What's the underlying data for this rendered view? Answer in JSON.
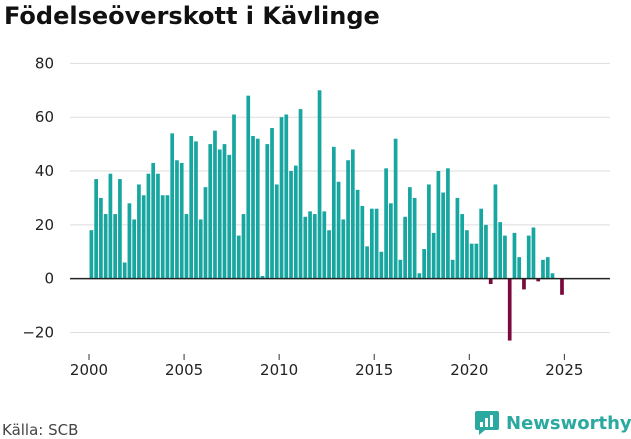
{
  "title": "Födelseöverskott i Kävlinge",
  "source": "Källa: SCB",
  "brand": {
    "name": "Newsworthy",
    "icon": "newsworthy-logo-icon"
  },
  "colors": {
    "positive": "#17a6a0",
    "negative": "#7b0a3c",
    "grid": "#dddddd",
    "zero_line": "#222222"
  },
  "chart_data": {
    "type": "bar",
    "title": "Födelseöverskott i Kävlinge",
    "xlabel": "",
    "ylabel": "",
    "ylim": [
      -28,
      82
    ],
    "xlim": [
      1999.0,
      2027.4
    ],
    "yticks": [
      -20,
      0,
      20,
      40,
      60,
      80
    ],
    "xticks": [
      2000,
      2005,
      2010,
      2015,
      2020,
      2025
    ],
    "grid": true,
    "frequency": "quarterly",
    "start_period": "2000 Q1",
    "values": [
      18,
      37,
      30,
      24,
      39,
      24,
      37,
      6,
      28,
      22,
      35,
      31,
      39,
      43,
      39,
      31,
      31,
      54,
      44,
      43,
      24,
      53,
      51,
      22,
      34,
      50,
      55,
      48,
      50,
      46,
      61,
      16,
      24,
      68,
      53,
      52,
      1,
      50,
      56,
      35,
      60,
      61,
      40,
      42,
      63,
      23,
      25,
      24,
      70,
      25,
      18,
      49,
      36,
      22,
      44,
      48,
      33,
      27,
      12,
      26,
      26,
      10,
      41,
      28,
      52,
      7,
      23,
      34,
      30,
      2,
      11,
      35,
      17,
      40,
      32,
      41,
      7,
      30,
      24,
      18,
      13,
      13,
      26,
      20,
      -2,
      35,
      21,
      16,
      -23,
      17,
      8,
      -4,
      16,
      19,
      -1,
      7,
      8,
      2,
      0,
      -6
    ]
  }
}
